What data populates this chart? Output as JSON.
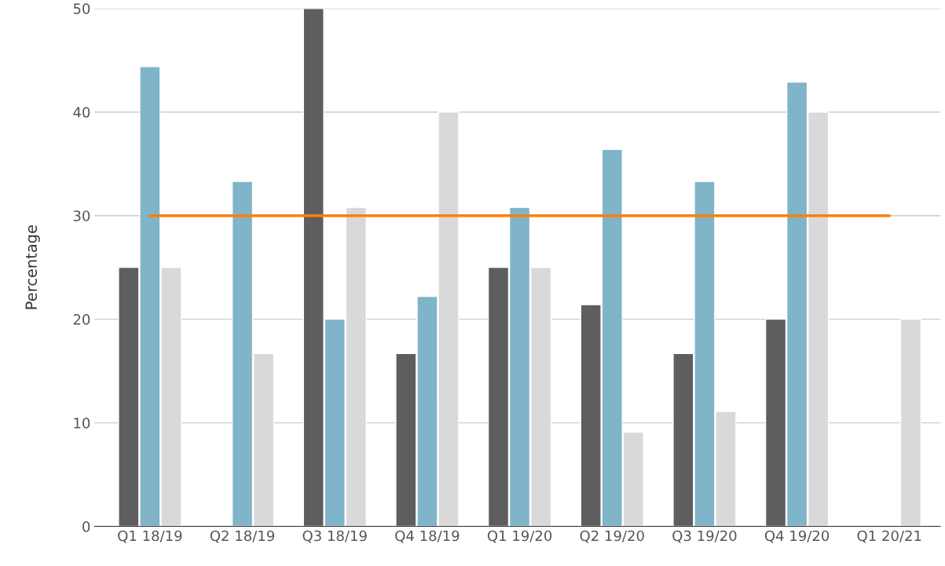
{
  "chart_data": {
    "type": "bar",
    "ylabel": "Percentage",
    "categories": [
      "Q1 18/19",
      "Q2 18/19",
      "Q3 18/19",
      "Q4 18/19",
      "Q1 19/20",
      "Q2 19/20",
      "Q3 19/20",
      "Q4 19/20",
      "Q1 20/21"
    ],
    "series": [
      {
        "color": "#5e5e5e",
        "values": [
          25,
          null,
          50,
          16.7,
          25,
          21.4,
          16.7,
          20,
          null
        ]
      },
      {
        "color": "#7fb4c9",
        "values": [
          44.4,
          33.3,
          20,
          22.2,
          30.8,
          36.4,
          33.3,
          42.9,
          null
        ]
      },
      {
        "color": "#d9d9d9",
        "values": [
          25,
          16.7,
          30.8,
          40,
          25,
          9.1,
          11.1,
          40,
          20
        ]
      },
      {
        "type": "line",
        "color": "#ff7f00",
        "values": [
          30,
          30,
          30,
          30,
          30,
          30,
          30,
          30,
          30
        ]
      }
    ],
    "ylim": [
      0,
      50
    ],
    "yticks": [
      0,
      10,
      20,
      30,
      40,
      50
    ],
    "grid": "y"
  }
}
